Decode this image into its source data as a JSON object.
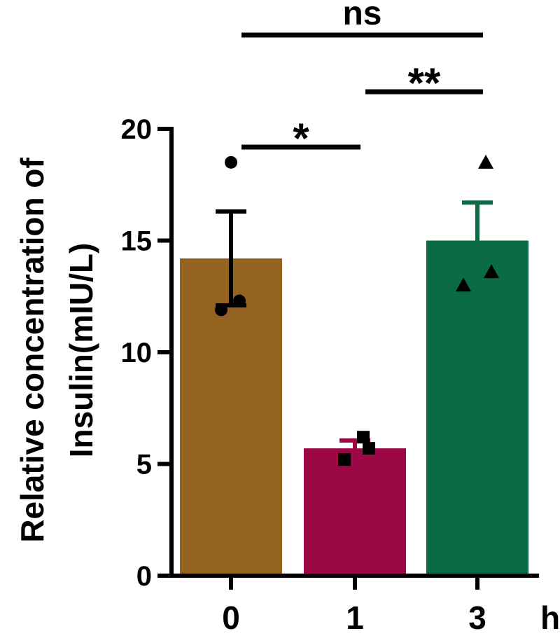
{
  "chart_data": {
    "type": "bar",
    "ylabel_line1": "Relative concentration of",
    "ylabel_line2": "Insulin(mIU/L)",
    "xunit": "h",
    "categories": [
      "0",
      "1",
      "3"
    ],
    "values": [
      14.2,
      5.7,
      15.0
    ],
    "errors": [
      2.1,
      0.35,
      1.7
    ],
    "colors": [
      "#946321",
      "#9c0846",
      "#0a6b45"
    ],
    "errorbar_colors": [
      "#000000",
      "#9c0846",
      "#0a6b45"
    ],
    "markers": [
      "circle",
      "square",
      "triangle"
    ],
    "points": [
      [
        18.5,
        12.3,
        11.9
      ],
      [
        6.2,
        5.7,
        5.2
      ],
      [
        18.5,
        13.6,
        13.0
      ]
    ],
    "ylim": [
      0,
      20
    ],
    "yticks": [
      0,
      5,
      10,
      15,
      20
    ],
    "significance": [
      {
        "from": 0,
        "to": 1,
        "label": "*",
        "level": 1
      },
      {
        "from": 1,
        "to": 2,
        "label": "**",
        "level": 2
      },
      {
        "from": 0,
        "to": 2,
        "label": "ns",
        "level": 3
      }
    ]
  }
}
